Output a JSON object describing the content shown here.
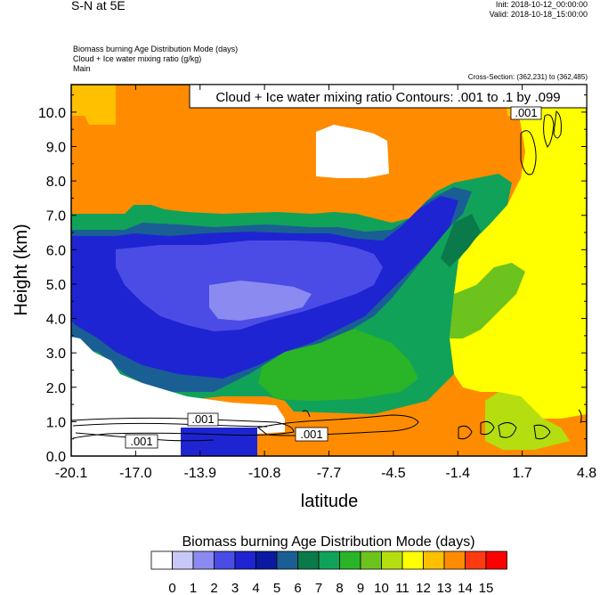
{
  "header": {
    "title": "S-N at 5E",
    "init": "Init: 2018-10-12_00:00:00",
    "valid": "Valid: 2018-10-18_15:00:00",
    "field1": "Biomass burning Age Distribution Mode   (days)",
    "field2": "Cloud + Ice water mixing ratio   (g/kg)",
    "field3": "Main",
    "cross_section": "Cross-Section: (362,231) to (362,485)"
  },
  "chart_data": {
    "type": "heatmap",
    "title": "Biomass burning Age Distribution Mode   (days)",
    "xlabel": "latitude",
    "ylabel": "Height (km)",
    "xlim": [
      -20.1,
      4.8
    ],
    "ylim": [
      0.0,
      10.8
    ],
    "xticks": [
      "-20.1",
      "-17.0",
      "-13.9",
      "-10.8",
      "-7.7",
      "-4.5",
      "-1.4",
      "1.7",
      "4.8"
    ],
    "yticks": [
      "0.0",
      "1.0",
      "2.0",
      "3.0",
      "4.0",
      "5.0",
      "6.0",
      "7.0",
      "8.0",
      "9.0",
      "10.0"
    ],
    "contour_title": "Cloud + Ice water mixing ratio Contours: .001 to .1 by .099",
    "contour_labels": [
      ".001",
      ".001",
      ".001",
      ".001"
    ],
    "colorbar": {
      "title": "Biomass burning Age Distribution Mode  (days)",
      "labels": [
        "0",
        "1",
        "2",
        "3",
        "4",
        "5",
        "6",
        "7",
        "8",
        "9",
        "10",
        "11",
        "12",
        "13",
        "14",
        "15"
      ],
      "colors": [
        "#ffffff",
        "#c8c8f8",
        "#8a8af0",
        "#4b4be6",
        "#1f24d2",
        "#0a1aa0",
        "#1a5f94",
        "#0a7a4a",
        "#11a25a",
        "#2ab428",
        "#6cc31e",
        "#b4de10",
        "#ffff00",
        "#ffc000",
        "#ff8c00",
        "#ff3a10",
        "#ff0000"
      ]
    },
    "regions": [
      {
        "level": 14,
        "desc": "upper atmosphere and lower right"
      },
      {
        "level": 13,
        "desc": "top-left corner and near 9.6 km"
      },
      {
        "level": 12,
        "desc": "north of -1.4, 1.5-11 km"
      },
      {
        "level": 11,
        "desc": "near surface north of 1.0"
      },
      {
        "level": 9,
        "desc": "mid layer"
      },
      {
        "level": 7,
        "desc": "plume edge"
      },
      {
        "level": 5,
        "desc": "plume body"
      },
      {
        "level": 3,
        "desc": "plume core"
      },
      {
        "level": 2,
        "desc": "plume center"
      },
      {
        "level": 0,
        "desc": "clean air"
      }
    ]
  }
}
